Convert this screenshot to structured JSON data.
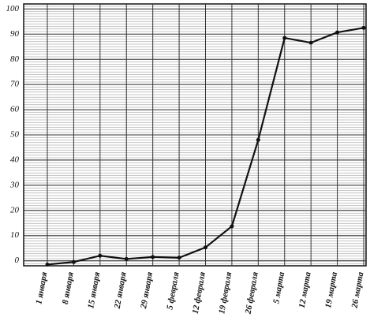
{
  "chart_data": {
    "type": "line",
    "categories": [
      "1 января",
      "8 января",
      "15 января",
      "22 января",
      "29 января",
      "5 февраля",
      "12 февраля",
      "19 февраля",
      "26 февраля",
      "5 марта",
      "12 марта",
      "19 марта",
      "26 марта"
    ],
    "values": [
      -1.5,
      -0.5,
      2,
      0.7,
      1.5,
      1.2,
      5.3,
      13.7,
      48,
      88.5,
      86.6,
      90.7,
      92.5
    ],
    "color": "#111111",
    "ylim": [
      -2,
      102
    ],
    "yticks": [
      0,
      10,
      20,
      30,
      40,
      50,
      60,
      70,
      80,
      90,
      100
    ],
    "grid": true
  }
}
